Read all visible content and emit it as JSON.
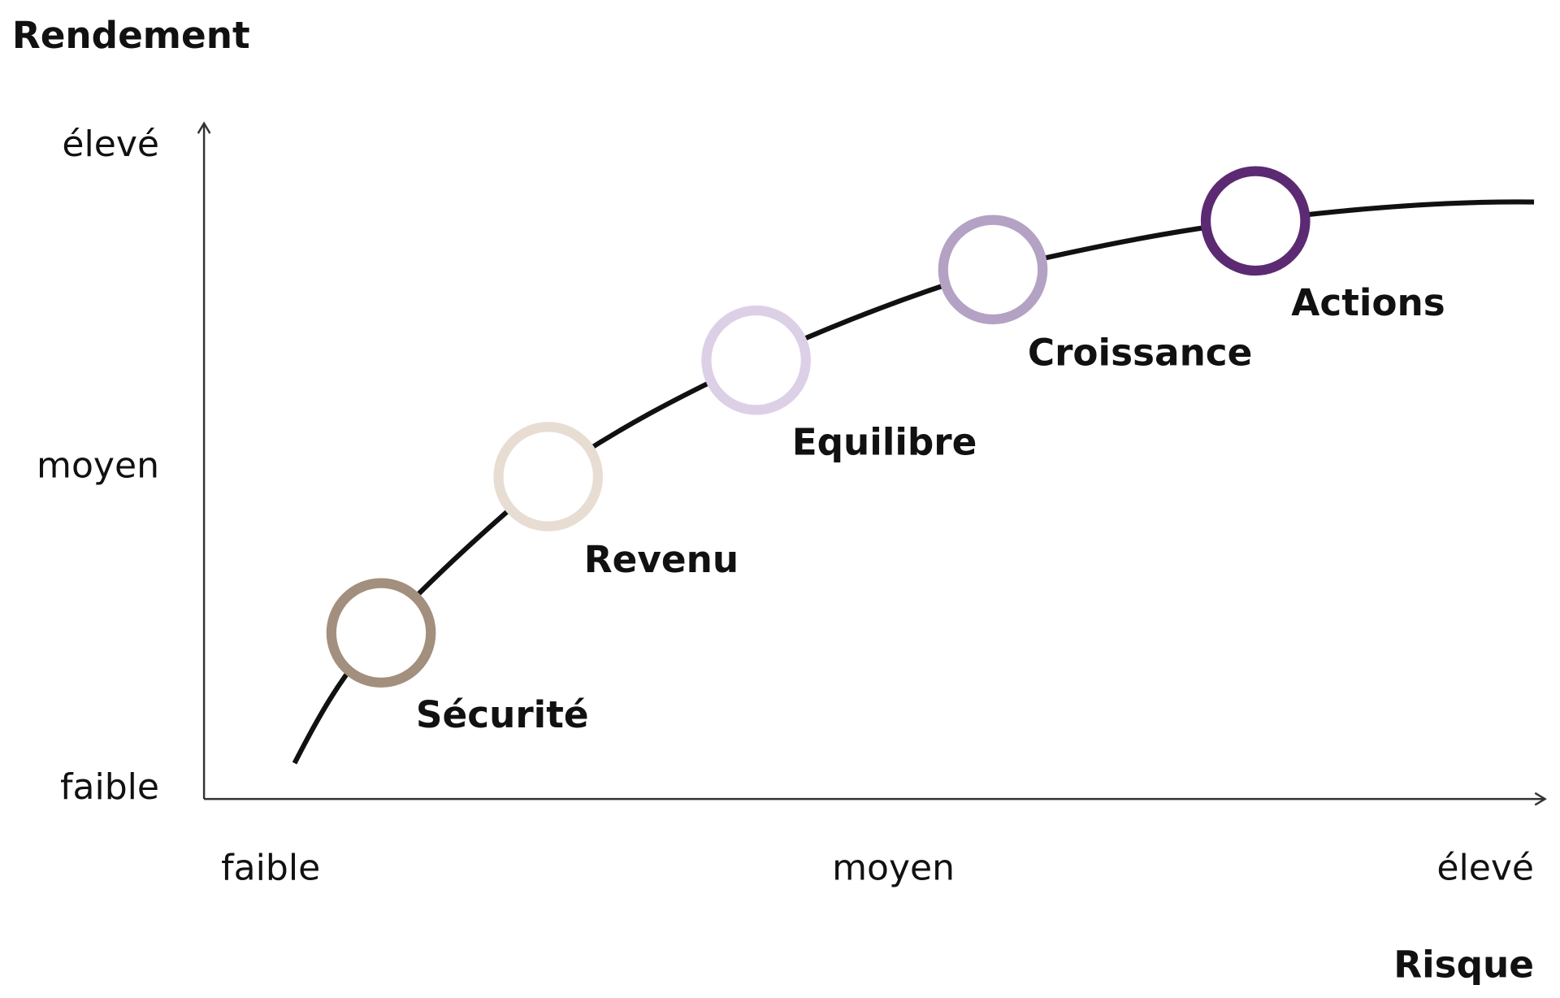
{
  "y_axis": {
    "title": "Rendement",
    "labels": [
      "élevé",
      "moyen",
      "faible"
    ]
  },
  "x_axis": {
    "title": "Risque",
    "labels": [
      "faible",
      "moyen",
      "élevé"
    ]
  },
  "nodes": [
    {
      "label": "Sécurité",
      "color": "#a38f7e"
    },
    {
      "label": "Revenu",
      "color": "#e8ddd2"
    },
    {
      "label": "Equilibre",
      "color": "#dcd0e6"
    },
    {
      "label": "Croissance",
      "color": "#b3a2c4"
    },
    {
      "label": "Actions",
      "color": "#5c2a72"
    }
  ]
}
